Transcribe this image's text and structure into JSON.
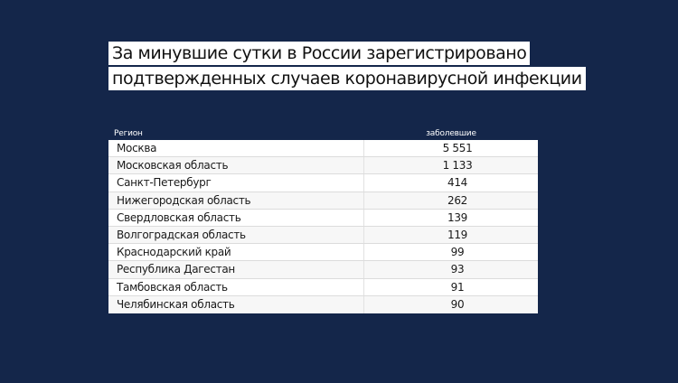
{
  "title": {
    "line1": "За минувшие сутки в России зарегистрировано",
    "line2": "подтвержденных случаев коронавирусной инфекции"
  },
  "colors": {
    "background": "#14264a",
    "table_bg": "#ffffff",
    "title_bg": "#ffffff"
  },
  "table": {
    "headers": [
      "Регион",
      "заболевшие"
    ],
    "rows": [
      {
        "region": "Москва",
        "cases": "5 551"
      },
      {
        "region": "Московская область",
        "cases": "1 133"
      },
      {
        "region": "Санкт-Петербург",
        "cases": "414"
      },
      {
        "region": "Нижегородская область",
        "cases": "262"
      },
      {
        "region": "Свердловская область",
        "cases": "139"
      },
      {
        "region": "Волгоградская область",
        "cases": "119"
      },
      {
        "region": "Краснодарский край",
        "cases": "99"
      },
      {
        "region": "Республика Дагестан",
        "cases": "93"
      },
      {
        "region": "Тамбовская область",
        "cases": "91"
      },
      {
        "region": "Челябинская область",
        "cases": "90"
      }
    ]
  }
}
